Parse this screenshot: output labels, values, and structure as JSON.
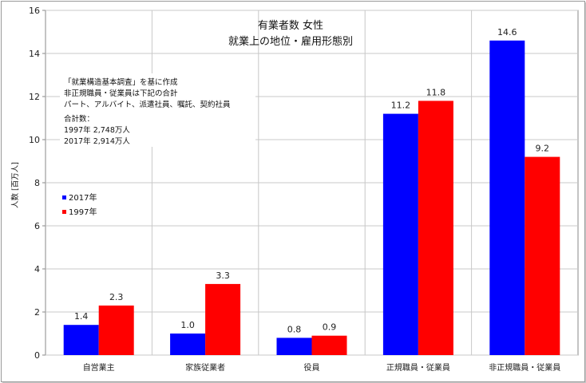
{
  "chart_data": {
    "type": "bar",
    "title": "有業者数 女性",
    "subtitle": "就業上の地位・雇用形態別",
    "ylabel": "人数 [百万人]",
    "xlabel": "",
    "ylim": [
      0,
      16
    ],
    "yticks": [
      0,
      2,
      4,
      6,
      8,
      10,
      12,
      14,
      16
    ],
    "grid": true,
    "legend_position": "left",
    "categories": [
      "自営業主",
      "家族従業者",
      "役員",
      "正規職員・従業員",
      "非正規職員・従業員"
    ],
    "series": [
      {
        "name": "2017年",
        "color": "#0000ff",
        "values": [
          1.4,
          1.0,
          0.8,
          11.2,
          14.6
        ],
        "labels": [
          "1.4",
          "1.0",
          "0.8",
          "11.2",
          "14.6"
        ]
      },
      {
        "name": "1997年",
        "color": "#ff0000",
        "values": [
          2.3,
          3.3,
          0.9,
          11.8,
          9.2
        ],
        "labels": [
          "2.3",
          "3.3",
          "0.9",
          "11.8",
          "9.2"
        ]
      }
    ],
    "annotation": {
      "lines": [
        "「就業構造基本調査」を基に作成",
        "非正規職員・従業員は下記の合計",
        "パート、アルバイト、派遣社員、嘱託、契約社員",
        "合計数：",
        "1997年 2,748万人",
        "2017年 2,914万人"
      ]
    }
  }
}
